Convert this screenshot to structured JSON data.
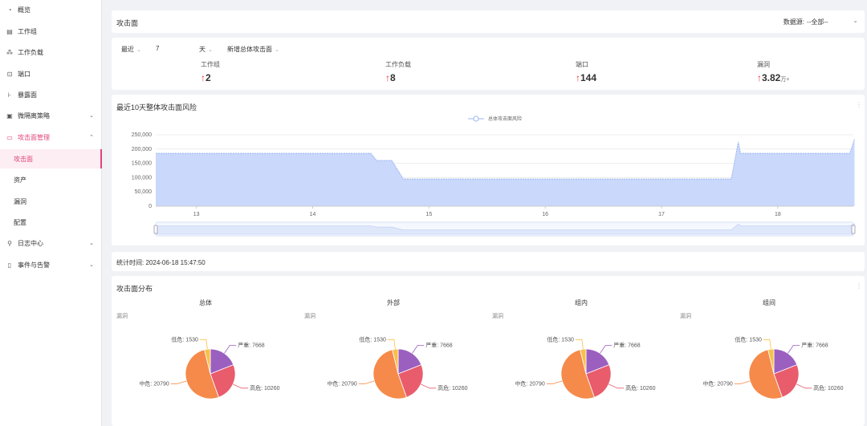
{
  "sidebar": {
    "items": [
      {
        "label": "概览",
        "icon": "overview-icon"
      },
      {
        "label": "工作组",
        "icon": "workgroup-icon"
      },
      {
        "label": "工作负载",
        "icon": "workload-icon"
      },
      {
        "label": "端口",
        "icon": "port-icon"
      },
      {
        "label": "暴露面",
        "icon": "exposure-icon"
      },
      {
        "label": "微隔离策略",
        "icon": "policy-icon"
      },
      {
        "label": "攻击面管理",
        "icon": "attack-surface-icon"
      },
      {
        "label": "日志中心",
        "icon": "log-icon"
      },
      {
        "label": "事件与告警",
        "icon": "alert-icon"
      }
    ],
    "sub_items": [
      "攻击面",
      "资产",
      "漏洞",
      "配置"
    ]
  },
  "topbar": {
    "title": "攻击面",
    "datasource_label": "数据源:",
    "datasource_value": "--全部--"
  },
  "filters": {
    "range_label": "最近",
    "range_value": "7",
    "range_unit": "天",
    "metric": "新增总体攻击面"
  },
  "stats": [
    {
      "label": "工作组",
      "value": "2",
      "unit": ""
    },
    {
      "label": "工作负载",
      "value": "8",
      "unit": ""
    },
    {
      "label": "端口",
      "value": "144",
      "unit": ""
    },
    {
      "label": "漏洞",
      "value": "3.82",
      "unit": "万+"
    }
  ],
  "trend": {
    "title": "最近10天整体攻击面风险",
    "chart_data": {
      "type": "area",
      "series": [
        {
          "name": "总体攻击面风险",
          "x": [
            12.65,
            14.5,
            14.55,
            14.68,
            14.78,
            17.6,
            17.66,
            17.68,
            18.62,
            18.66
          ],
          "y": [
            185000,
            185000,
            160000,
            160000,
            95000,
            95000,
            225000,
            185000,
            185000,
            235000
          ]
        }
      ],
      "x_ticks": [
        "13",
        "14",
        "15",
        "16",
        "17",
        "18"
      ],
      "y_ticks": [
        "250,000",
        "200,000",
        "150,000",
        "100,000",
        "50,000",
        "0"
      ],
      "ylim": [
        0,
        250000
      ],
      "xlim": [
        12.65,
        18.65
      ],
      "color": "#c9d8fb",
      "line_color": "#9db6f2"
    }
  },
  "stat_time": {
    "label": "统计时间:",
    "value": "2024-06-18 15:47:50"
  },
  "distribution": {
    "title": "攻击面分布",
    "chart_data": [
      {
        "type": "pie",
        "title": "总体",
        "subtitle": "漏洞",
        "labels": [
          "严重",
          "高危",
          "中危",
          "低危"
        ],
        "values": [
          7668,
          10260,
          20790,
          1530
        ]
      },
      {
        "type": "pie",
        "title": "外部",
        "subtitle": "漏洞",
        "labels": [
          "严重",
          "高危",
          "中危",
          "低危"
        ],
        "values": [
          7668,
          10260,
          20790,
          1530
        ]
      },
      {
        "type": "pie",
        "title": "组内",
        "subtitle": "漏洞",
        "labels": [
          "严重",
          "高危",
          "中危",
          "低危"
        ],
        "values": [
          7668,
          10260,
          20790,
          1530
        ]
      },
      {
        "type": "pie",
        "title": "组间",
        "subtitle": "漏洞",
        "labels": [
          "严重",
          "高危",
          "中危",
          "低危"
        ],
        "values": [
          7668,
          10260,
          20790,
          1530
        ]
      }
    ],
    "colors": {
      "严重": "#9b5fc0",
      "高危": "#e85c6c",
      "中危": "#f58a4b",
      "低危": "#f7c04a"
    }
  }
}
